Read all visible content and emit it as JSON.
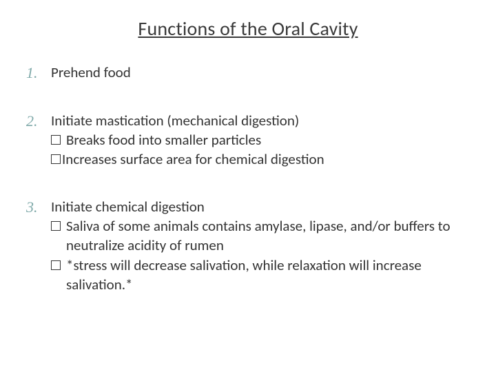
{
  "colors": {
    "background": "#ffffff",
    "title_text": "#3a3a3a",
    "body_text": "#333333",
    "number_color": "#7fa9a9",
    "bullet_border": "#333333"
  },
  "typography": {
    "title_fontsize": 28,
    "title_weight": 400,
    "title_family": "Calibri",
    "body_fontsize": 21,
    "body_family": "Calibri",
    "number_fontsize": 22,
    "number_family": "Georgia",
    "number_style": "italic"
  },
  "layout": {
    "slide_width": 720,
    "slide_height": 540,
    "padding_top": 24,
    "padding_sides": 36,
    "block_gap": 40
  },
  "title": "Functions of the Oral Cavity",
  "items": [
    {
      "number": "1.",
      "text": "Prehend food",
      "subs": []
    },
    {
      "number": "2.",
      "text": "Initiate mastication (mechanical digestion)",
      "subs": [
        {
          "text": "Breaks food into smaller particles",
          "spaced": true
        },
        {
          "text": "Increases surface area for chemical digestion",
          "spaced": false
        }
      ]
    },
    {
      "number": "3.",
      "text": "Initiate chemical digestion",
      "subs": [
        {
          "text": "Saliva of some animals contains amylase, lipase, and/or buffers to neutralize acidity of rumen",
          "spaced": true,
          "hang": true
        },
        {
          "text": "*stress will decrease salivation, while relaxation will increase salivation.*",
          "spaced": true,
          "hang": true
        }
      ]
    }
  ]
}
